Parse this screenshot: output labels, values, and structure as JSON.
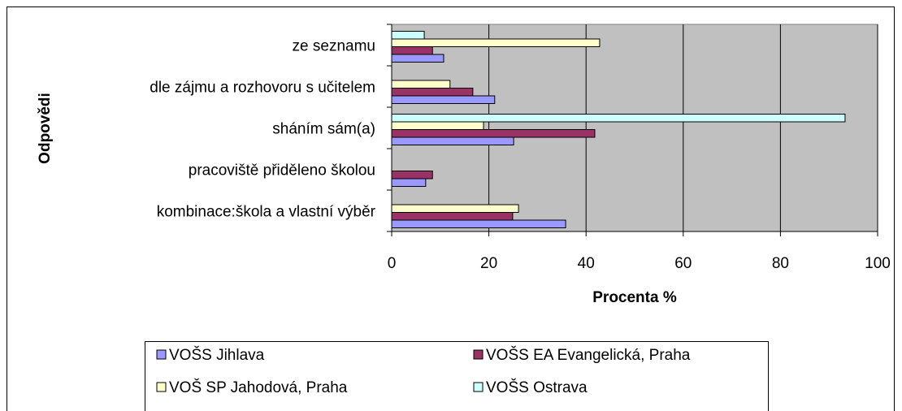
{
  "chart_data": {
    "type": "hbar",
    "xlabel": "Procenta %",
    "ylabel": "Odpovědi",
    "categories": [
      "ze seznamu",
      "dle zájmu a rozhovoru s učitelem",
      "sháním sám(a)",
      "pracoviště přiděleno školou",
      "kombinace:škola a vlastní výběr"
    ],
    "series": [
      {
        "name": "VOŠS Jihlava",
        "color": "#9999ff",
        "values": [
          10.7,
          21.2,
          25.1,
          7,
          35.8
        ]
      },
      {
        "name": "VOŠS EA Evangelická, Praha",
        "color": "#993366",
        "values": [
          8.4,
          16.7,
          41.8,
          8.4,
          24.9
        ]
      },
      {
        "name": "VOŠ SP Jahodová, Praha",
        "color": "#ffffcc",
        "values": [
          42.8,
          12,
          18.9,
          0,
          26.1
        ]
      },
      {
        "name": "VOŠS Ostrava",
        "color": "#ccffff",
        "values": [
          6.7,
          0,
          93.3,
          0,
          0
        ]
      }
    ],
    "xlim": [
      0,
      100
    ],
    "xticks": [
      0,
      20,
      40,
      60,
      80,
      100
    ],
    "grid": true,
    "plot_background": "#c0c0c0",
    "legend": "bottom"
  }
}
